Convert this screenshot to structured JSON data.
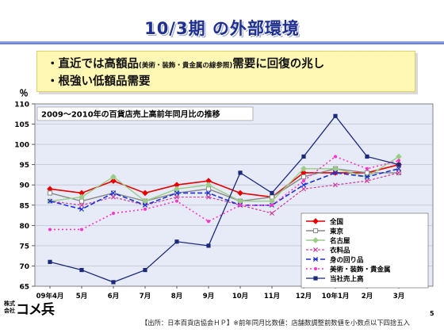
{
  "slide": {
    "title": "10/3期 の外部環境",
    "bullet1_main": "・直近では高額品",
    "bullet1_small": "(美術・装飾・貴金属の線参照)",
    "bullet1_tail": "需要に回復の兆し",
    "bullet2": "・根強い低額品需要",
    "source_note": "【出所：日本百貨店協会ＨＰ】※前年同月比数値：店舗数調整前数値を小数点以下四捨五入",
    "page_number": "5",
    "logo_small": "株式会社",
    "logo_mark": "コメ兵"
  },
  "colors": {
    "title": "#1f2f8f",
    "callout_bg": "#fff8b5",
    "plot_bg": "#e7eaf7"
  },
  "chart_data": {
    "type": "line",
    "title": "2009～2010年の百貨店売上高前年同月比の推移",
    "ylabel": "％",
    "xlabel": "",
    "ylim": [
      65,
      110
    ],
    "yticks": [
      65,
      70,
      75,
      80,
      85,
      90,
      95,
      100,
      105,
      110
    ],
    "grid": true,
    "legend_position": "bottom-right",
    "categories": [
      "09年4月",
      "5月",
      "6月",
      "7月",
      "8月",
      "9月",
      "10月",
      "11月",
      "12月",
      "10年1月",
      "2月",
      "3月"
    ],
    "series": [
      {
        "name": "全国",
        "color": "#e60000",
        "dash": "",
        "marker": "diamond",
        "width": 1.6,
        "values": [
          89,
          88,
          91,
          88,
          90,
          91,
          88,
          87,
          93,
          93,
          93,
          95
        ]
      },
      {
        "name": "東京",
        "color": "#888888",
        "dash": "",
        "marker": "square-open",
        "width": 1.4,
        "values": [
          88,
          86,
          88,
          86,
          88,
          89,
          86,
          87,
          92,
          94,
          93,
          93
        ]
      },
      {
        "name": "名古屋",
        "color": "#9acd87",
        "dash": "",
        "marker": "diamond",
        "width": 1.4,
        "values": [
          86,
          87,
          92,
          86,
          89,
          90,
          86,
          86,
          94,
          94,
          92,
          97
        ]
      },
      {
        "name": "衣料品",
        "color": "#cc3fa0",
        "dash": "3,2",
        "marker": "x",
        "width": 1.2,
        "values": [
          86,
          85,
          87,
          85,
          87,
          87,
          85,
          83,
          89,
          90,
          91,
          93
        ]
      },
      {
        "name": "身の回り品",
        "color": "#1a2fd6",
        "dash": "6,3",
        "marker": "x",
        "width": 1.6,
        "values": [
          86,
          84,
          88,
          85,
          88,
          88,
          85,
          85,
          90,
          93,
          92,
          94
        ]
      },
      {
        "name": "美術・装飾・貴金属",
        "color": "#ff33cc",
        "dash": "2,3",
        "marker": "dot",
        "width": 1.6,
        "values": [
          79,
          79,
          83,
          84,
          86,
          81,
          85,
          85,
          91,
          97,
          94,
          96
        ]
      },
      {
        "name": "当社売上高",
        "color": "#1c2a7a",
        "dash": "",
        "marker": "square",
        "width": 1.3,
        "values": [
          71,
          69,
          66,
          69,
          76,
          75,
          93,
          88,
          97,
          107,
          97,
          95
        ]
      }
    ]
  }
}
